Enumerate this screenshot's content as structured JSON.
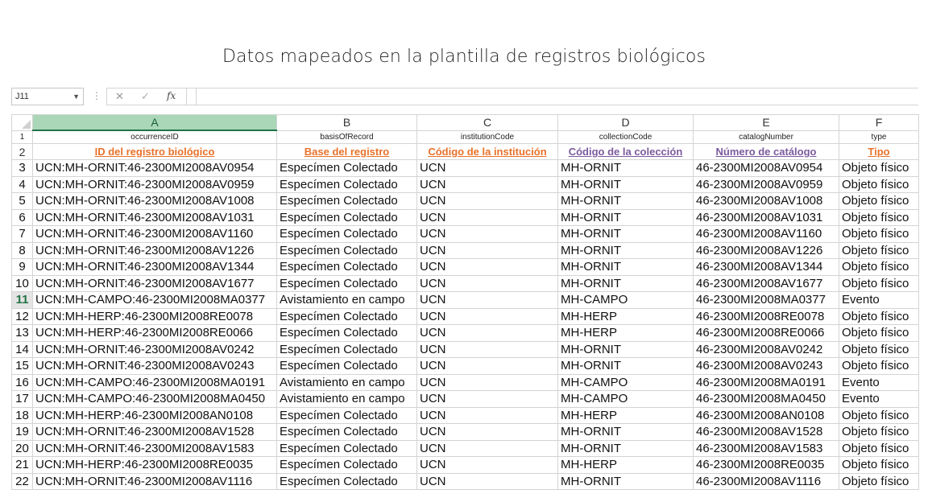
{
  "title": "Datos mapeados en la plantilla de registros biológicos",
  "formula_bar": {
    "cell_ref": "J11",
    "cancel_glyph": "✕",
    "enter_glyph": "✓",
    "fx_glyph": "fx",
    "formula": ""
  },
  "column_headers": [
    "A",
    "B",
    "C",
    "D",
    "E",
    "F"
  ],
  "selected_column": "A",
  "selected_row": "11",
  "field_names": [
    "occurrenceID",
    "basisOfRecord",
    "institutionCode",
    "collectionCode",
    "catalogNumber",
    "type"
  ],
  "field_labels": [
    {
      "text": "ID del registro biológico",
      "color": "#e8722a"
    },
    {
      "text": "Base del registro",
      "color": "#e8722a"
    },
    {
      "text": "Código de la institución",
      "color": "#e8722a"
    },
    {
      "text": "Código de la colección",
      "color": "#7c5a9e"
    },
    {
      "text": "Número de catálogo",
      "color": "#7c5a9e"
    },
    {
      "text": "Tipo",
      "color": "#e8722a"
    }
  ],
  "rows": [
    {
      "n": "3",
      "cells": [
        "UCN:MH-ORNIT:46-2300MI2008AV0954",
        "Especímen Colectado",
        "UCN",
        "MH-ORNIT",
        "46-2300MI2008AV0954",
        "Objeto físico"
      ]
    },
    {
      "n": "4",
      "cells": [
        "UCN:MH-ORNIT:46-2300MI2008AV0959",
        "Especímen Colectado",
        "UCN",
        "MH-ORNIT",
        "46-2300MI2008AV0959",
        "Objeto físico"
      ]
    },
    {
      "n": "5",
      "cells": [
        "UCN:MH-ORNIT:46-2300MI2008AV1008",
        "Especímen Colectado",
        "UCN",
        "MH-ORNIT",
        "46-2300MI2008AV1008",
        "Objeto físico"
      ]
    },
    {
      "n": "6",
      "cells": [
        "UCN:MH-ORNIT:46-2300MI2008AV1031",
        "Especímen Colectado",
        "UCN",
        "MH-ORNIT",
        "46-2300MI2008AV1031",
        "Objeto físico"
      ]
    },
    {
      "n": "7",
      "cells": [
        "UCN:MH-ORNIT:46-2300MI2008AV1160",
        "Especímen Colectado",
        "UCN",
        "MH-ORNIT",
        "46-2300MI2008AV1160",
        "Objeto físico"
      ]
    },
    {
      "n": "8",
      "cells": [
        "UCN:MH-ORNIT:46-2300MI2008AV1226",
        "Especímen Colectado",
        "UCN",
        "MH-ORNIT",
        "46-2300MI2008AV1226",
        "Objeto físico"
      ]
    },
    {
      "n": "9",
      "cells": [
        "UCN:MH-ORNIT:46-2300MI2008AV1344",
        "Especímen Colectado",
        "UCN",
        "MH-ORNIT",
        "46-2300MI2008AV1344",
        "Objeto físico"
      ]
    },
    {
      "n": "10",
      "cells": [
        "UCN:MH-ORNIT:46-2300MI2008AV1677",
        "Especímen Colectado",
        "UCN",
        "MH-ORNIT",
        "46-2300MI2008AV1677",
        "Objeto físico"
      ]
    },
    {
      "n": "11",
      "cells": [
        "UCN:MH-CAMPO:46-2300MI2008MA0377",
        "Avistamiento en campo",
        "UCN",
        "MH-CAMPO",
        "46-2300MI2008MA0377",
        "Evento"
      ]
    },
    {
      "n": "12",
      "cells": [
        "UCN:MH-HERP:46-2300MI2008RE0078",
        "Especímen Colectado",
        "UCN",
        "MH-HERP",
        "46-2300MI2008RE0078",
        "Objeto físico"
      ]
    },
    {
      "n": "13",
      "cells": [
        "UCN:MH-HERP:46-2300MI2008RE0066",
        "Especímen Colectado",
        "UCN",
        "MH-HERP",
        "46-2300MI2008RE0066",
        "Objeto físico"
      ]
    },
    {
      "n": "14",
      "cells": [
        "UCN:MH-ORNIT:46-2300MI2008AV0242",
        "Especímen Colectado",
        "UCN",
        "MH-ORNIT",
        "46-2300MI2008AV0242",
        "Objeto físico"
      ]
    },
    {
      "n": "15",
      "cells": [
        "UCN:MH-ORNIT:46-2300MI2008AV0243",
        "Especímen Colectado",
        "UCN",
        "MH-ORNIT",
        "46-2300MI2008AV0243",
        "Objeto físico"
      ]
    },
    {
      "n": "16",
      "cells": [
        "UCN:MH-CAMPO:46-2300MI2008MA0191",
        "Avistamiento en campo",
        "UCN",
        "MH-CAMPO",
        "46-2300MI2008MA0191",
        "Evento"
      ]
    },
    {
      "n": "17",
      "cells": [
        "UCN:MH-CAMPO:46-2300MI2008MA0450",
        "Avistamiento en campo",
        "UCN",
        "MH-CAMPO",
        "46-2300MI2008MA0450",
        "Evento"
      ]
    },
    {
      "n": "18",
      "cells": [
        "UCN:MH-HERP:46-2300MI2008AN0108",
        "Especímen Colectado",
        "UCN",
        "MH-HERP",
        "46-2300MI2008AN0108",
        "Objeto físico"
      ]
    },
    {
      "n": "19",
      "cells": [
        "UCN:MH-ORNIT:46-2300MI2008AV1528",
        "Especímen Colectado",
        "UCN",
        "MH-ORNIT",
        "46-2300MI2008AV1528",
        "Objeto físico"
      ]
    },
    {
      "n": "20",
      "cells": [
        "UCN:MH-ORNIT:46-2300MI2008AV1583",
        "Especímen Colectado",
        "UCN",
        "MH-ORNIT",
        "46-2300MI2008AV1583",
        "Objeto físico"
      ]
    },
    {
      "n": "21",
      "cells": [
        "UCN:MH-HERP:46-2300MI2008RE0035",
        "Especímen Colectado",
        "UCN",
        "MH-HERP",
        "46-2300MI2008RE0035",
        "Objeto físico"
      ]
    },
    {
      "n": "22",
      "cells": [
        "UCN:MH-ORNIT:46-2300MI2008AV1116",
        "Especímen Colectado",
        "UCN",
        "MH-ORNIT",
        "46-2300MI2008AV1116",
        "Objeto físico"
      ]
    }
  ]
}
